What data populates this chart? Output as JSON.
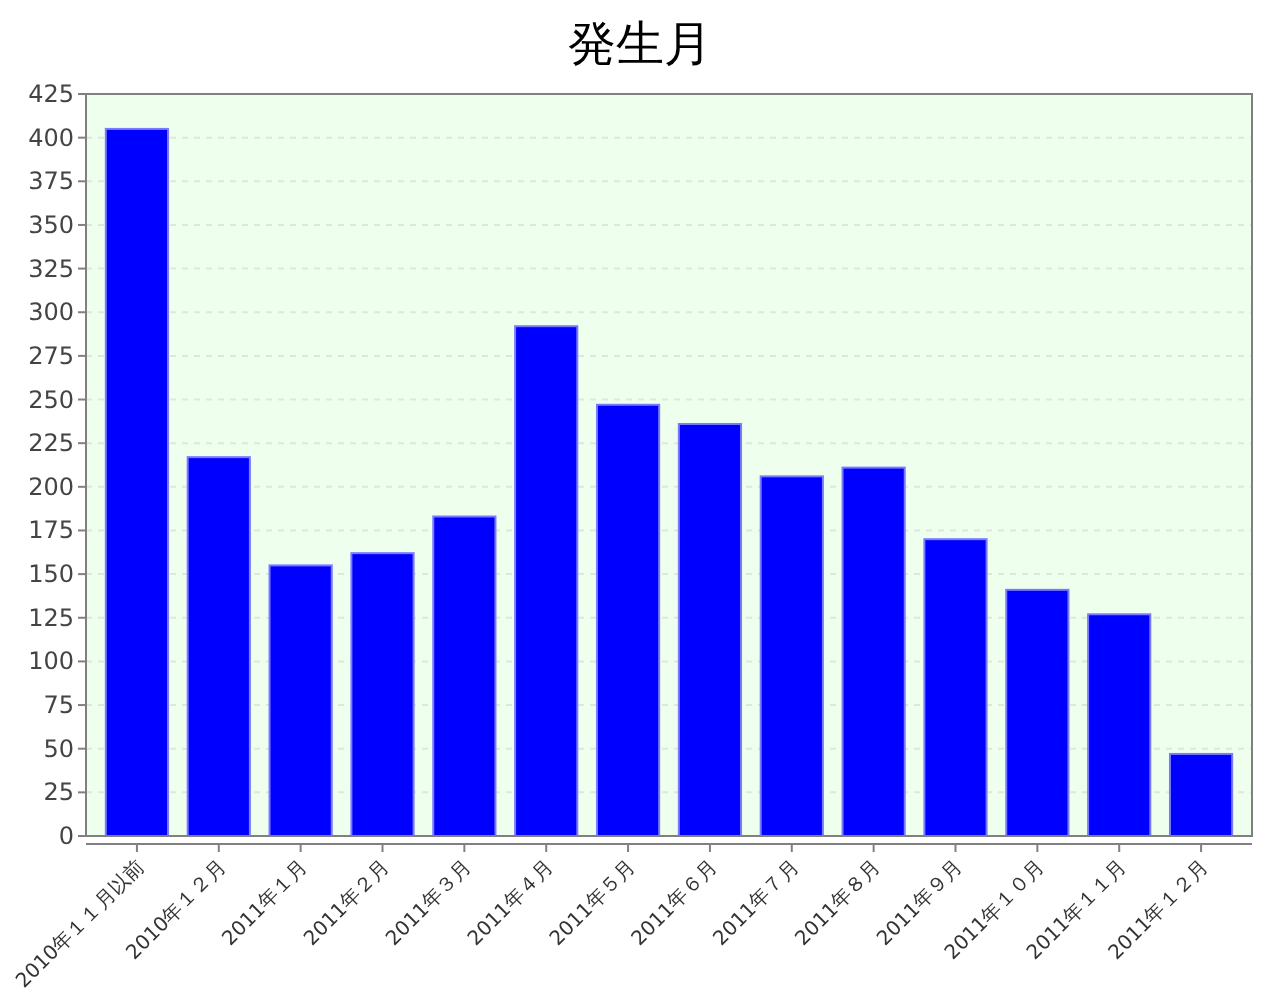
{
  "chart_data": {
    "type": "bar",
    "title": "発生月",
    "categories": [
      "2010年１１月以前",
      "2010年１２月",
      "2011年１月",
      "2011年２月",
      "2011年３月",
      "2011年４月",
      "2011年５月",
      "2011年６月",
      "2011年７月",
      "2011年８月",
      "2011年９月",
      "2011年１０月",
      "2011年１１月",
      "2011年１２月"
    ],
    "values": [
      405,
      217,
      155,
      162,
      183,
      292,
      247,
      236,
      206,
      211,
      170,
      141,
      127,
      47
    ],
    "color": "#0000ff",
    "ylim": [
      0,
      425
    ],
    "yticks": [
      0,
      25,
      50,
      75,
      100,
      125,
      150,
      175,
      200,
      225,
      250,
      275,
      300,
      325,
      350,
      375,
      400,
      425
    ],
    "grid": "y"
  }
}
